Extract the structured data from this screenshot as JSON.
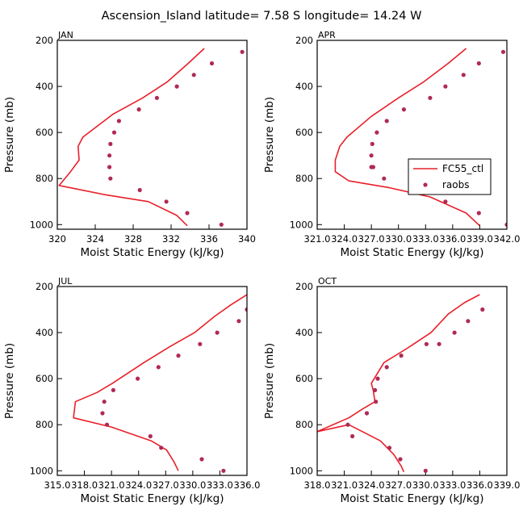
{
  "title": "Ascension_Island   latitude= 7.58 S longitude= 14.24 W",
  "colors": {
    "model": "#e8202a",
    "obs": "#b02a55",
    "axes": "#000000"
  },
  "legend": {
    "model_label": "FC55_ctl",
    "obs_label": "raobs"
  },
  "chart_data": [
    {
      "type": "line",
      "panel": "JAN",
      "xlabel": "Moist Static Energy (kJ/kg)",
      "ylabel": "Pressure (mb)",
      "xlim": [
        320,
        340
      ],
      "ylim": [
        1020,
        200
      ],
      "xticks": [
        320,
        324,
        328,
        332,
        336,
        340
      ],
      "xtick_labels": [
        "320",
        "324",
        "328",
        "332",
        "336",
        "340"
      ],
      "yticks": [
        200,
        400,
        600,
        800,
        1000
      ],
      "ytick_labels": [
        "200",
        "400",
        "600",
        "800",
        "1000"
      ],
      "series": [
        {
          "name": "FC55_ctl",
          "style": "line",
          "x": [
            335.5,
            333.8,
            331.6,
            329.0,
            325.9,
            322.7,
            322.2,
            322.3,
            321.4,
            320.2,
            325.0,
            329.6,
            332.6,
            333.7
          ],
          "y": [
            235,
            300,
            380,
            450,
            520,
            620,
            660,
            720,
            770,
            830,
            870,
            900,
            960,
            1005
          ]
        },
        {
          "name": "raobs",
          "style": "dots",
          "x": [
            339.5,
            336.3,
            334.4,
            332.6,
            330.5,
            328.6,
            326.5,
            326.0,
            325.6,
            325.5,
            325.5,
            325.6,
            328.7,
            331.5,
            333.7,
            337.3
          ],
          "y": [
            250,
            300,
            350,
            400,
            450,
            500,
            550,
            600,
            650,
            700,
            750,
            800,
            850,
            900,
            950,
            1000
          ]
        }
      ]
    },
    {
      "type": "line",
      "panel": "APR",
      "xlabel": "Moist Static Energy (kJ/kg)",
      "ylabel": "Pressure (mb)",
      "xlim": [
        321.0,
        342.0
      ],
      "ylim": [
        1020,
        200
      ],
      "xticks": [
        321.0,
        324.0,
        327.0,
        330.0,
        333.0,
        336.0,
        339.0,
        342.0
      ],
      "xtick_labels": [
        "321.0",
        "324.0",
        "327.0",
        "330.0",
        "333.0",
        "336.0",
        "339.0",
        "342.0"
      ],
      "yticks": [
        200,
        400,
        600,
        800,
        1000
      ],
      "ytick_labels": [
        "200",
        "400",
        "600",
        "800",
        "1000"
      ],
      "series": [
        {
          "name": "FC55_ctl",
          "style": "line",
          "x": [
            337.5,
            335.5,
            332.8,
            330.0,
            327.0,
            324.3,
            323.5,
            323.0,
            323.0,
            324.5,
            329.0,
            333.5,
            337.5,
            339.0
          ],
          "y": [
            235,
            300,
            380,
            450,
            530,
            620,
            660,
            720,
            770,
            810,
            840,
            880,
            950,
            1005
          ]
        },
        {
          "name": "raobs",
          "style": "dots",
          "x": [
            341.6,
            338.9,
            337.2,
            335.2,
            333.5,
            330.6,
            328.7,
            327.6,
            327.1,
            327.0,
            327.0,
            327.2,
            328.4,
            332.3,
            335.2,
            338.9,
            342.0
          ],
          "y": [
            250,
            300,
            350,
            400,
            450,
            500,
            550,
            600,
            650,
            700,
            750,
            750,
            800,
            850,
            900,
            950,
            1000
          ]
        }
      ]
    },
    {
      "type": "line",
      "panel": "JUL",
      "xlabel": "Moist Static Energy (kJ/kg)",
      "ylabel": "Pressure (mb)",
      "xlim": [
        315.0,
        336.0
      ],
      "ylim": [
        1020,
        200
      ],
      "xticks": [
        315.0,
        318.0,
        321.0,
        324.0,
        327.0,
        330.0,
        333.0,
        336.0
      ],
      "xtick_labels": [
        "315.0",
        "318.0",
        "321.0",
        "324.0",
        "327.0",
        "330.0",
        "333.0",
        "336.0"
      ],
      "yticks": [
        200,
        400,
        600,
        800,
        1000
      ],
      "ytick_labels": [
        "200",
        "400",
        "600",
        "800",
        "1000"
      ],
      "series": [
        {
          "name": "FC55_ctl",
          "style": "line",
          "x": [
            336.0,
            334.2,
            332.4,
            330.2,
            327.5,
            324.6,
            321.1,
            319.4,
            317.0,
            316.8,
            321.0,
            325.4,
            327.1,
            327.9,
            328.4
          ],
          "y": [
            235,
            280,
            330,
            400,
            460,
            530,
            620,
            660,
            700,
            770,
            810,
            870,
            910,
            960,
            1000
          ]
        },
        {
          "name": "raobs",
          "style": "dots",
          "x": [
            336.0,
            335.1,
            332.7,
            330.8,
            328.4,
            326.2,
            323.9,
            321.2,
            320.2,
            320.0,
            320.5,
            325.3,
            326.5,
            331.0,
            333.4
          ],
          "y": [
            300,
            350,
            400,
            450,
            500,
            550,
            600,
            650,
            700,
            750,
            800,
            850,
            900,
            950,
            1000
          ]
        }
      ]
    },
    {
      "type": "line",
      "panel": "OCT",
      "xlabel": "Moist Static Energy (kJ/kg)",
      "ylabel": "Pressure (mb)",
      "xlim": [
        318.0,
        339.0
      ],
      "ylim": [
        1020,
        200
      ],
      "xticks": [
        318.0,
        321.0,
        324.0,
        327.0,
        330.0,
        333.0,
        336.0,
        339.0
      ],
      "xtick_labels": [
        "318.0",
        "321.0",
        "324.0",
        "327.0",
        "330.0",
        "333.0",
        "336.0",
        "339.0"
      ],
      "yticks": [
        200,
        400,
        600,
        800,
        1000
      ],
      "ytick_labels": [
        "200",
        "400",
        "600",
        "800",
        "1000"
      ],
      "series": [
        {
          "name": "FC55_ctl",
          "style": "line",
          "x": [
            336.0,
            334.3,
            332.5,
            330.6,
            327.9,
            325.4,
            324.0,
            324.2,
            324.4,
            323.1,
            321.5,
            318.0,
            321.5,
            325.0,
            326.5,
            327.3,
            327.6
          ],
          "y": [
            235,
            270,
            320,
            400,
            470,
            530,
            620,
            650,
            700,
            730,
            770,
            830,
            800,
            870,
            930,
            980,
            1005
          ]
        },
        {
          "name": "raobs",
          "style": "dots",
          "x": [
            336.3,
            334.7,
            333.2,
            331.5,
            330.1,
            327.3,
            325.7,
            324.7,
            324.4,
            324.5,
            323.5,
            321.4,
            321.9,
            326.0,
            327.2,
            330.0
          ],
          "y": [
            300,
            350,
            400,
            450,
            450,
            500,
            550,
            600,
            650,
            700,
            750,
            800,
            850,
            900,
            950,
            1000
          ]
        }
      ]
    }
  ]
}
